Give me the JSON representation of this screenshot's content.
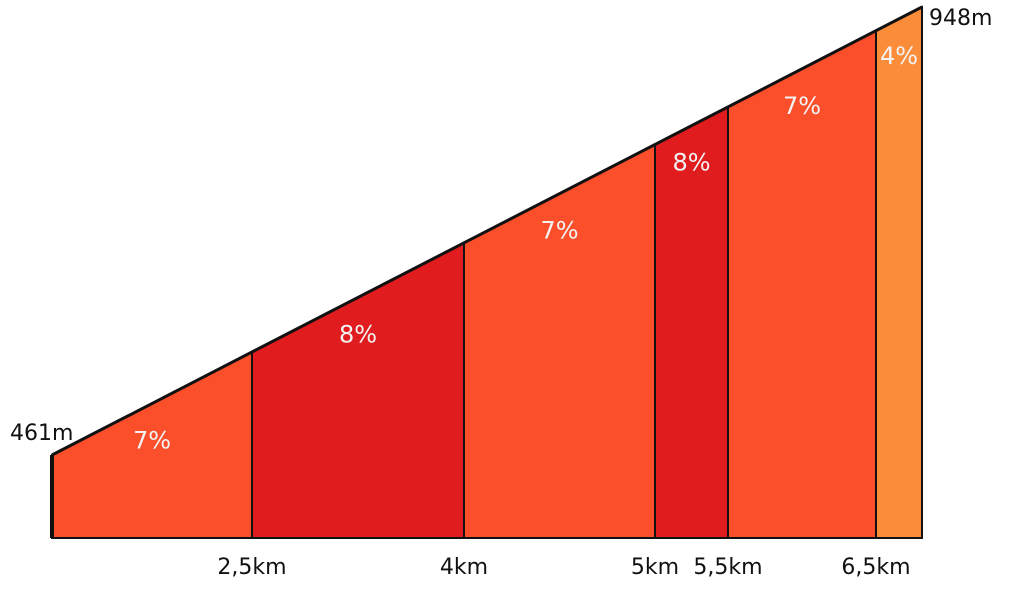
{
  "chart_data": {
    "type": "area",
    "title": "",
    "xlabel": "",
    "ylabel": "",
    "start_elevation_label": "461m",
    "end_elevation_label": "948m",
    "start_elevation": 461,
    "end_elevation": 948,
    "distance_ticks": [
      {
        "km": 2.5,
        "label": "2,5km"
      },
      {
        "km": 4,
        "label": "4km"
      },
      {
        "km": 5,
        "label": "5km"
      },
      {
        "km": 5.5,
        "label": "5,5km"
      },
      {
        "km": 6.5,
        "label": "6,5km"
      }
    ],
    "segments": [
      {
        "from_km": 0,
        "to_km": 2.5,
        "gradient_label": "7%",
        "color": "#fb4f2c"
      },
      {
        "from_km": 2.5,
        "to_km": 4,
        "gradient_label": "8%",
        "color": "#e11c1e"
      },
      {
        "from_km": 4,
        "to_km": 5,
        "gradient_label": "7%",
        "color": "#fb4f2c"
      },
      {
        "from_km": 5,
        "to_km": 5.5,
        "gradient_label": "8%",
        "color": "#e11c1e"
      },
      {
        "from_km": 5.5,
        "to_km": 6.5,
        "gradient_label": "7%",
        "color": "#fb4f2c"
      },
      {
        "from_km": 6.5,
        "to_km": 6.8,
        "gradient_label": "4%",
        "color": "#fb8c3a"
      }
    ]
  }
}
